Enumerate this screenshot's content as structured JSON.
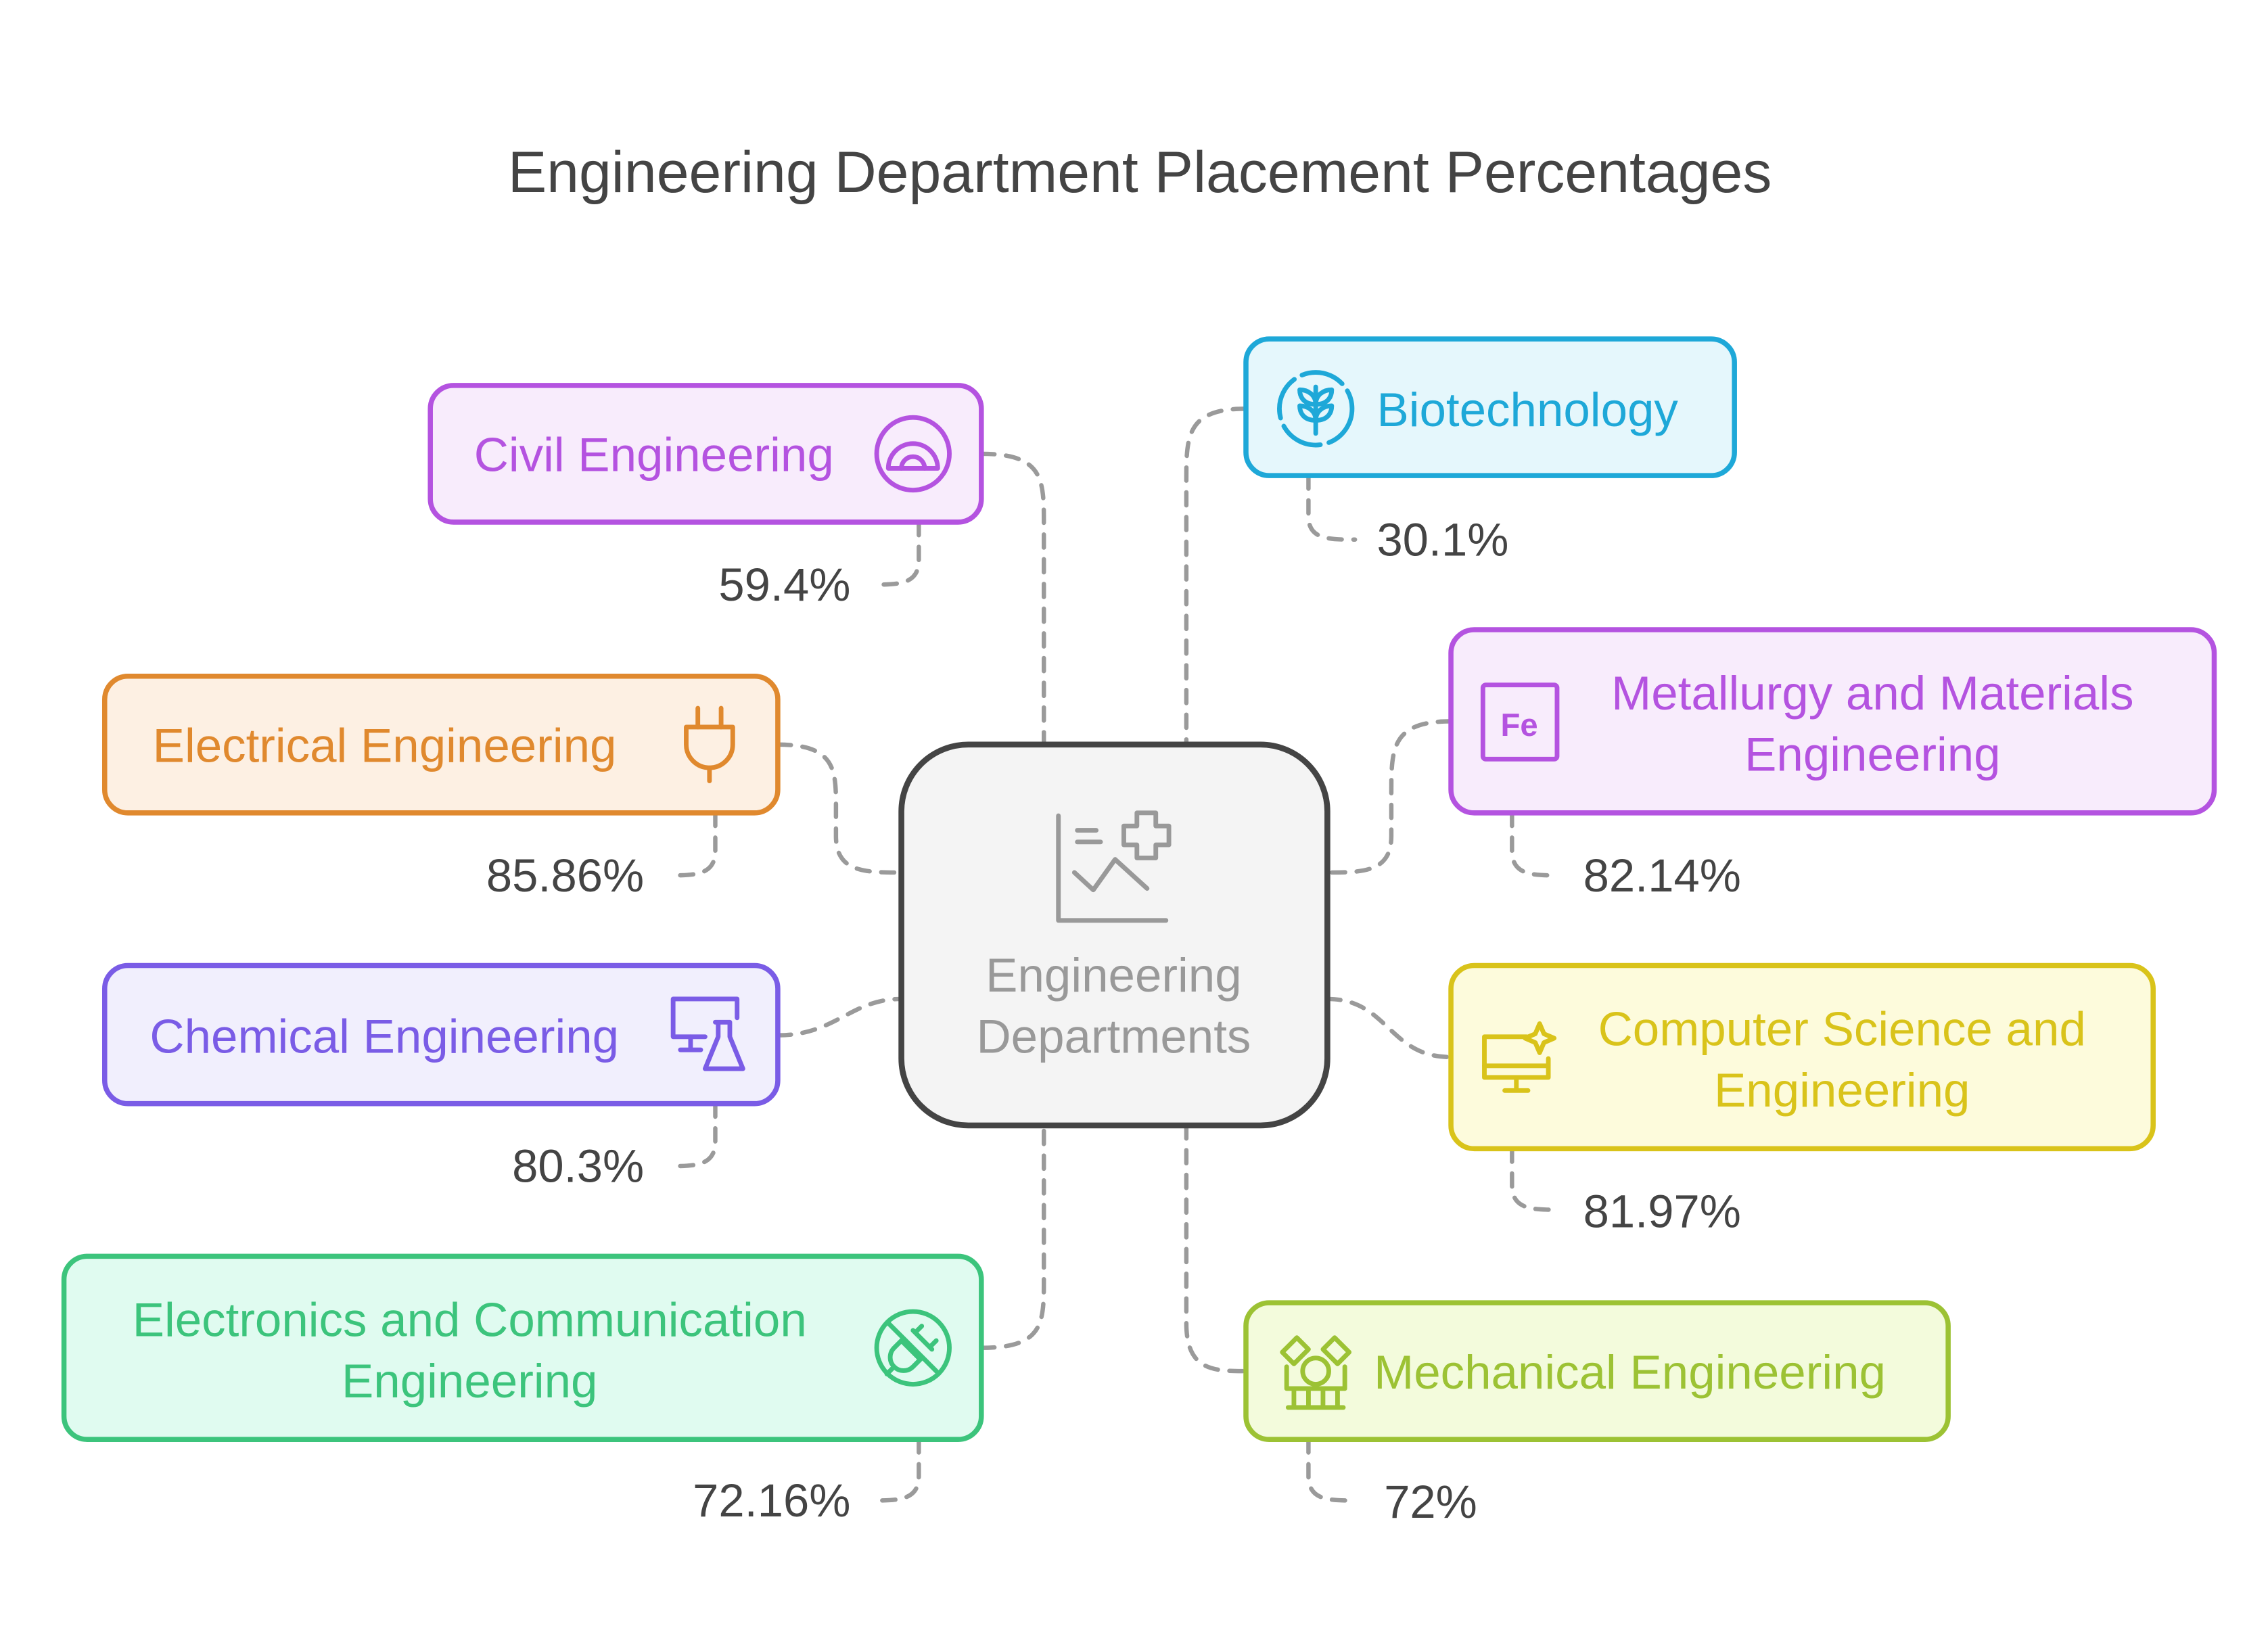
{
  "title": "Engineering Department Placement Percentages",
  "center": {
    "label_line1": "Engineering",
    "label_line2": "Departments",
    "icon": "chart-plus-icon",
    "color": "#444444"
  },
  "departments": [
    {
      "name": "Civil Engineering",
      "percent": "59.4%",
      "icon": "protractor-icon",
      "color": "#b453e0"
    },
    {
      "name": "Electrical Engineering",
      "percent": "85.86%",
      "icon": "plug-icon",
      "color": "#e0892e"
    },
    {
      "name": "Chemical Engineering",
      "percent": "80.3%",
      "icon": "monitor-flask-icon",
      "color": "#7a5ce6"
    },
    {
      "name_line1": "Electronics and Communication",
      "name_line2": "Engineering",
      "percent": "72.16%",
      "icon": "unplugged-icon",
      "color": "#3cc47c"
    },
    {
      "name": "Biotechnology",
      "percent": "30.1%",
      "icon": "wheat-icon",
      "color": "#1ea8d8"
    },
    {
      "name_line1": "Metallurgy and Materials",
      "name_line2": "Engineering",
      "percent": "82.14%",
      "icon": "iron-element-icon",
      "icon_text": "Fe",
      "color": "#b453e0"
    },
    {
      "name_line1": "Computer Science and",
      "name_line2": "Engineering",
      "percent": "81.97%",
      "icon": "monitor-sparkle-icon",
      "color": "#d9c31a"
    },
    {
      "name": "Mechanical Engineering",
      "percent": "72%",
      "icon": "robot-arms-icon",
      "color": "#9cc234"
    }
  ]
}
